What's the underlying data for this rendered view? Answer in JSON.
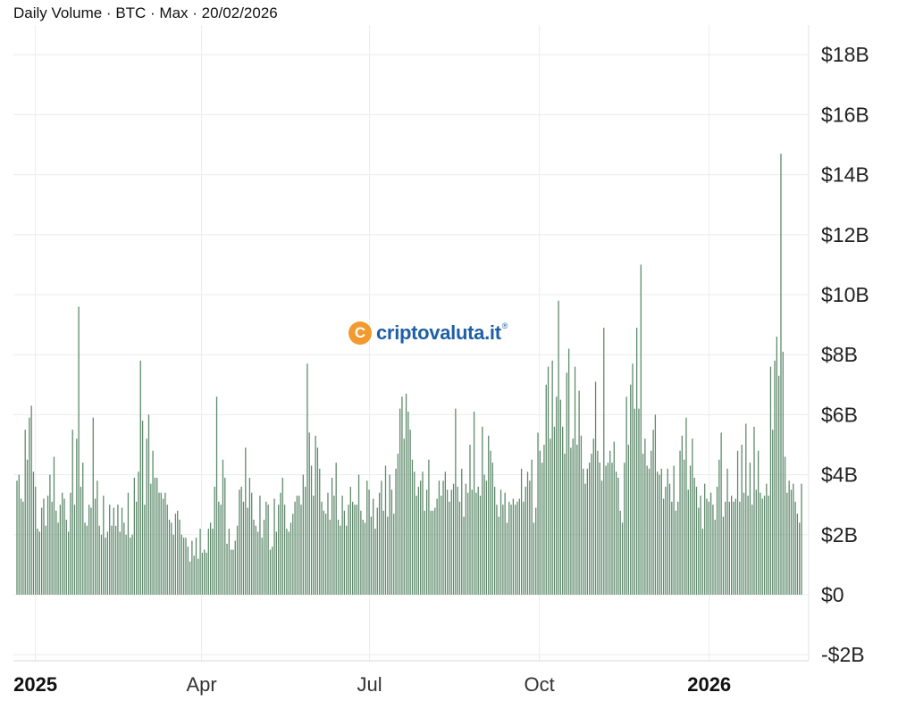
{
  "title": "Daily Volume · BTC · Max · 20/02/2026",
  "watermark": {
    "logo_char": "C",
    "text": "criptovaluta.it",
    "reg": "®",
    "logo_color": "#f29a2e",
    "text_color": "#1f5fa6"
  },
  "chart_data": {
    "type": "bar",
    "title": "Daily Volume · BTC · Max · 20/02/2026",
    "xlabel": "",
    "ylabel": "",
    "ylim": [
      -2,
      18.5
    ],
    "y_unit": "billion USD",
    "yticks": [
      {
        "value": 18,
        "label": "$18B"
      },
      {
        "value": 16,
        "label": "$16B"
      },
      {
        "value": 14,
        "label": "$14B"
      },
      {
        "value": 12,
        "label": "$12B"
      },
      {
        "value": 10,
        "label": "$10B"
      },
      {
        "value": 8,
        "label": "$8B"
      },
      {
        "value": 6,
        "label": "$6B"
      },
      {
        "value": 4,
        "label": "$4B"
      },
      {
        "value": 2,
        "label": "$2B"
      },
      {
        "value": 0,
        "label": "$0"
      },
      {
        "value": -2,
        "label": "-$2B"
      }
    ],
    "xticks": [
      {
        "date": "2025-01-01",
        "label": "2025",
        "bold": true
      },
      {
        "date": "2025-04-01",
        "label": "Apr",
        "bold": false
      },
      {
        "date": "2025-07-01",
        "label": "Jul",
        "bold": false
      },
      {
        "date": "2025-10-01",
        "label": "Oct",
        "bold": false
      },
      {
        "date": "2026-01-01",
        "label": "2026",
        "bold": true
      }
    ],
    "grid": true,
    "bar_color": "#5f8a6c",
    "first_date": "2024-12-22",
    "last_date": "2026-02-20",
    "values": [
      3.8,
      4.0,
      3.2,
      3.1,
      5.5,
      4.5,
      5.9,
      6.3,
      4.1,
      3.6,
      2.2,
      2.1,
      2.9,
      3.2,
      2.3,
      3.3,
      4.0,
      3.1,
      4.6,
      2.8,
      2.4,
      3.0,
      3.4,
      3.2,
      2.5,
      2.1,
      3.4,
      5.5,
      3.0,
      5.2,
      9.6,
      3.6,
      4.4,
      2.4,
      2.3,
      3.0,
      2.9,
      5.9,
      3.2,
      3.8,
      2.3,
      2.0,
      3.3,
      1.9,
      2.1,
      3.0,
      2.3,
      2.9,
      2.3,
      3.0,
      2.1,
      2.9,
      2.4,
      2.0,
      3.4,
      1.9,
      2.0,
      3.9,
      3.1,
      4.1,
      7.8,
      5.8,
      3.0,
      5.2,
      6.0,
      3.7,
      4.8,
      3.9,
      3.9,
      3.4,
      3.4,
      3.2,
      3.4,
      3.0,
      2.5,
      2.4,
      2.0,
      2.7,
      2.8,
      2.5,
      2.0,
      1.9,
      1.9,
      1.6,
      1.1,
      1.8,
      1.3,
      1.9,
      1.2,
      2.2,
      1.4,
      1.5,
      1.4,
      2.2,
      2.4,
      2.2,
      3.6,
      6.6,
      3.1,
      3.0,
      4.5,
      3.9,
      1.7,
      2.2,
      1.5,
      1.5,
      1.8,
      2.3,
      3.5,
      3.6,
      3.1,
      4.9,
      2.9,
      3.9,
      3.4,
      2.5,
      2.3,
      2.1,
      3.3,
      1.9,
      2.5,
      3.1,
      3.0,
      1.5,
      1.6,
      3.2,
      2.1,
      3.0,
      3.4,
      3.9,
      3.0,
      2.2,
      2.1,
      2.4,
      2.7,
      3.1,
      3.3,
      3.3,
      3.0,
      4.0,
      3.6,
      7.7,
      5.4,
      4.3,
      3.3,
      5.3,
      4.9,
      4.2,
      3.1,
      2.8,
      2.7,
      3.4,
      2.5,
      3.9,
      3.3,
      4.4,
      2.5,
      2.3,
      3.3,
      2.8,
      2.3,
      3.0,
      3.6,
      3.1,
      3.0,
      3.0,
      4.0,
      2.8,
      2.5,
      2.4,
      3.8,
      3.5,
      2.6,
      3.2,
      2.2,
      2.9,
      3.4,
      3.8,
      2.8,
      4.3,
      2.6,
      4.0,
      3.5,
      2.7,
      4.2,
      4.7,
      6.2,
      6.6,
      5.2,
      6.7,
      6.1,
      5.5,
      4.5,
      4.1,
      3.3,
      3.6,
      3.8,
      4.1,
      2.8,
      3.5,
      4.5,
      2.8,
      2.8,
      2.9,
      3.2,
      3.8,
      3.3,
      3.8,
      4.1,
      3.5,
      3.1,
      3.5,
      3.7,
      6.2,
      3.6,
      3.1,
      4.2,
      2.6,
      3.7,
      3.4,
      5.0,
      3.5,
      6.1,
      3.4,
      3.6,
      3.3,
      5.6,
      4.0,
      3.8,
      5.3,
      4.8,
      4.4,
      3.6,
      3.0,
      2.6,
      3.5,
      3.0,
      3.4,
      2.4,
      3.1,
      3.0,
      3.2,
      3.0,
      3.1,
      3.2,
      4.2,
      3.1,
      3.6,
      4.1,
      3.8,
      4.5,
      2.4,
      2.9,
      5.4,
      4.8,
      4.4,
      5.0,
      7.0,
      7.6,
      5.2,
      7.8,
      5.6,
      6.6,
      9.8,
      6.5,
      5.6,
      4.7,
      7.4,
      8.2,
      4.9,
      5.2,
      7.6,
      5.0,
      6.8,
      5.3,
      4.2,
      3.7,
      4.2,
      4.4,
      4.7,
      5.2,
      7.1,
      4.8,
      4.4,
      3.8,
      8.9,
      4.3,
      4.4,
      4.8,
      4.4,
      5.1,
      4.1,
      3.9,
      2.8,
      2.4,
      4.4,
      6.6,
      5.0,
      7.0,
      7.7,
      6.2,
      8.9,
      6.2,
      11.0,
      4.7,
      5.2,
      4.3,
      4.2,
      4.8,
      5.5,
      6.0,
      4.1,
      4.0,
      4.2,
      3.2,
      3.6,
      4.2,
      3.7,
      3.1,
      4.3,
      2.8,
      3.1,
      4.8,
      5.3,
      4.5,
      5.9,
      3.5,
      4.3,
      5.2,
      3.9,
      3.6,
      2.9,
      3.3,
      2.2,
      3.7,
      3.2,
      3.1,
      3.4,
      3.0,
      2.5,
      3.6,
      4.5,
      5.4,
      2.6,
      3.1,
      4.2,
      3.1,
      3.3,
      3.1,
      3.2,
      4.8,
      3.1,
      5.0,
      3.4,
      5.7,
      3.3,
      4.4,
      3.0,
      5.6,
      3.5,
      4.8,
      3.4,
      3.2,
      3.3,
      3.7,
      3.3,
      7.6,
      5.5,
      7.8,
      8.6,
      7.3,
      14.7,
      8.1,
      4.6,
      3.4,
      3.8,
      3.5,
      3.7,
      3.1,
      2.7,
      2.4,
      3.7
    ]
  }
}
